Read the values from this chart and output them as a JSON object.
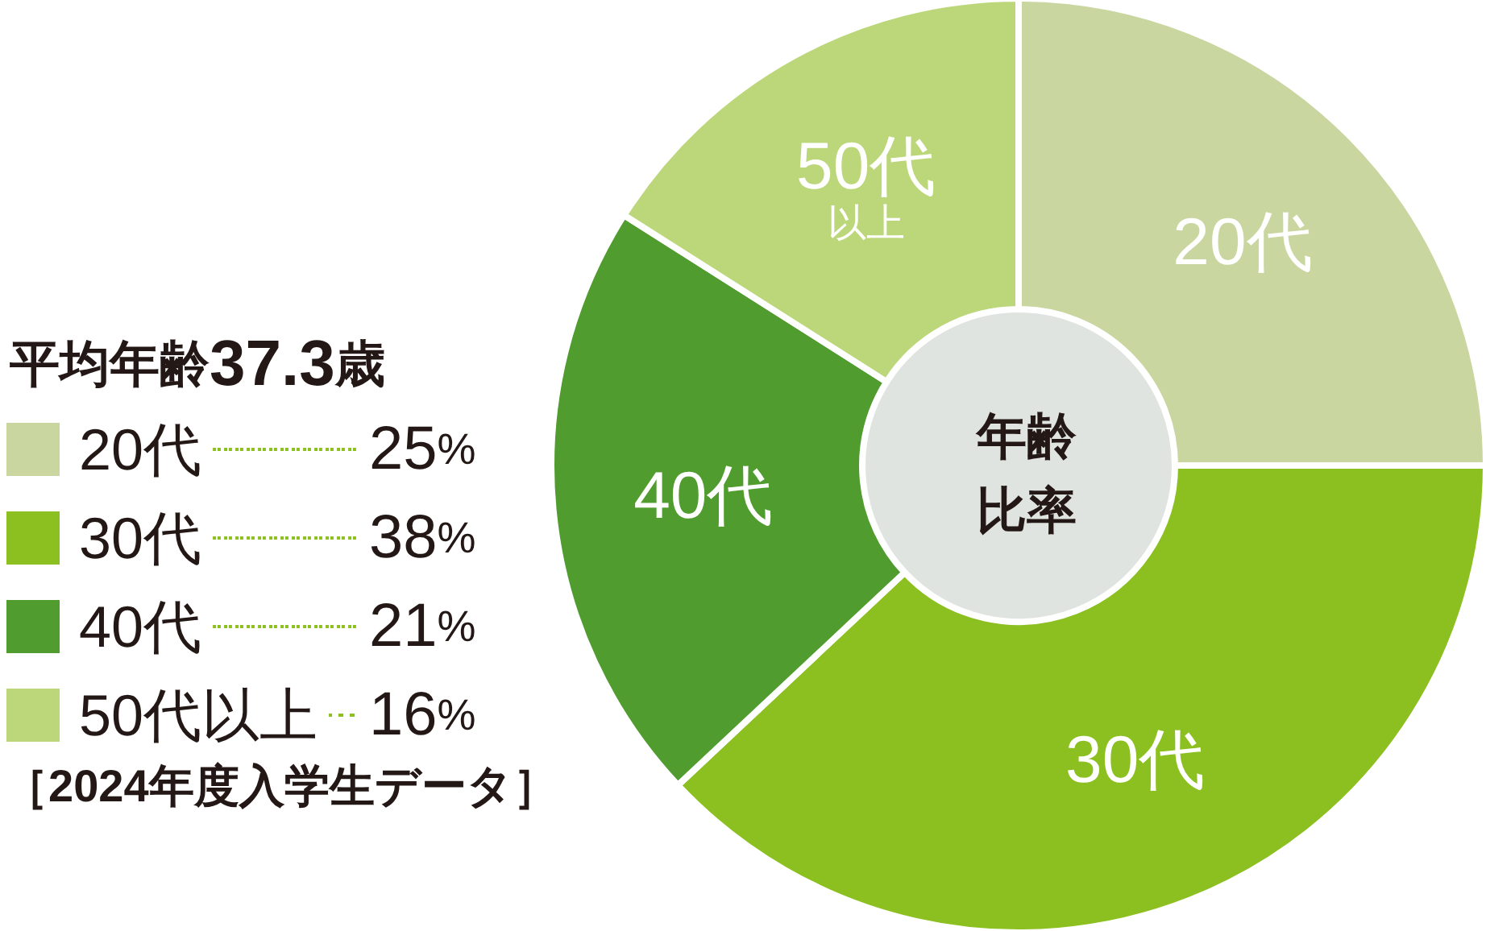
{
  "chart_data": {
    "type": "donut",
    "title": "年齢比率",
    "legend_title": "平均年齢37.3歳",
    "categories": [
      "20代",
      "30代",
      "40代",
      "50代以上"
    ],
    "values": [
      25,
      38,
      21,
      16
    ],
    "colors": [
      "#c9d6a0",
      "#8cc020",
      "#509c2e",
      "#bcd77a"
    ],
    "value_labels": [
      "25%",
      "38%",
      "21%",
      "16%"
    ],
    "legend": "left",
    "annotations": [
      "［2024年度入学生データ］",
      {
        "text": "20代",
        "x": "20代"
      },
      {
        "text": "30代",
        "x": "30代"
      },
      {
        "text": "40代",
        "x": "40代"
      },
      {
        "text": "50代以上",
        "x": "50代以上"
      }
    ]
  }
}
